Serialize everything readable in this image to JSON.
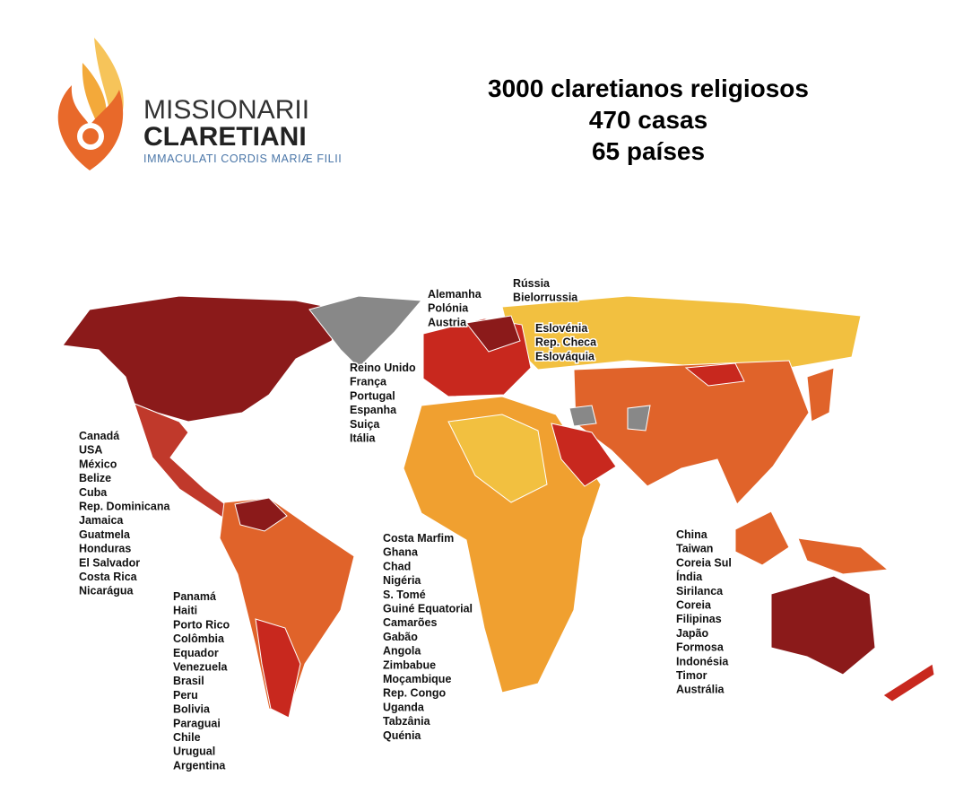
{
  "logo": {
    "line1": "MISSIONARII",
    "line2": "CLARETIANI",
    "line3": "IMMACULATI CORDIS MARIÆ FILII"
  },
  "stats": [
    "3000 claretianos religiosos",
    "470 casas",
    "65 países"
  ],
  "lists": [
    {
      "items": [
        "Alemanha",
        "Polónia",
        "Austria"
      ]
    },
    {
      "items": [
        "Rússia",
        "Bielorrussia"
      ]
    },
    {
      "items": [
        "Eslovénia",
        "Rep. Checa",
        "Eslováquia"
      ]
    },
    {
      "items": [
        "Reino Unido",
        "França",
        "Portugal",
        "Espanha",
        "Suiça",
        "Itália"
      ]
    },
    {
      "items": [
        "Canadá",
        "USA",
        "México",
        "Belize",
        "Cuba",
        "Rep. Dominicana",
        "Jamaica",
        "Guatmela",
        "Honduras",
        "El Salvador",
        "Costa Rica",
        "Nicarágua"
      ]
    },
    {
      "items": [
        "Panamá",
        "Haiti",
        "Porto Rico",
        "Colômbia",
        "Equador",
        "Venezuela",
        "Brasil",
        "Peru",
        "Bolivia",
        "Paraguai",
        "Chile",
        "Urugual",
        "Argentina"
      ]
    },
    {
      "items": [
        "Costa Marfim",
        "Ghana",
        "Chad",
        "Nigéria",
        "S. Tomé",
        "Guiné Equatorial",
        "Camarões",
        "Gabão",
        "Angola",
        "Zimbabue",
        "Moçambique",
        "Rep. Congo",
        "Uganda",
        "Tabzânia",
        "Quénia"
      ]
    },
    {
      "items": [
        "China",
        "Taiwan",
        "Coreia Sul",
        "Índia",
        "Sirilanca",
        "Coreia",
        "Filipinas",
        "Japão",
        "Formosa",
        "Indonésia",
        "Timor",
        "Austrália"
      ]
    }
  ]
}
